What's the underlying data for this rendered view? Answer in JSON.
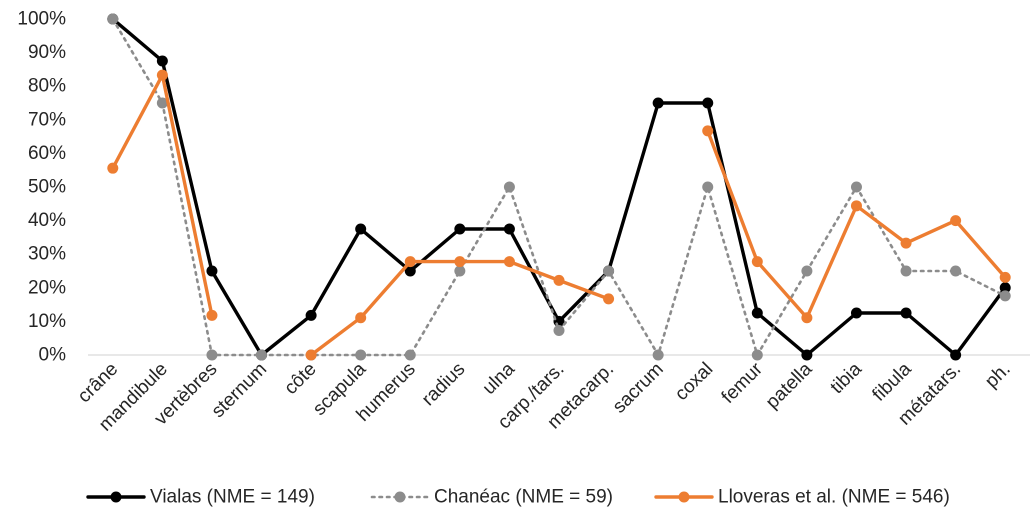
{
  "chart_data": {
    "type": "line",
    "categories": [
      "crâne",
      "mandibule",
      "vertèbres",
      "sternum",
      "côte",
      "scapula",
      "humerus",
      "radius",
      "ulna",
      "carp./tars.",
      "metacarp.",
      "sacrum",
      "coxal",
      "femur",
      "patella",
      "tibia",
      "fibula",
      "métatars.",
      "ph."
    ],
    "ylim": [
      0,
      100
    ],
    "yticks": [
      0,
      10,
      20,
      30,
      40,
      50,
      60,
      70,
      80,
      90,
      100
    ],
    "ytick_labels": [
      "0%",
      "10%",
      "20%",
      "30%",
      "40%",
      "50%",
      "60%",
      "70%",
      "80%",
      "90%",
      "100%"
    ],
    "grid": false,
    "legend_position": "bottom",
    "series": [
      {
        "name": "Vialas (NME = 149)",
        "color": "#000000",
        "style": "solid",
        "values": [
          100,
          87.5,
          25,
          0,
          11.8,
          37.5,
          25,
          37.5,
          37.5,
          10,
          25,
          75,
          75,
          12.5,
          0,
          12.5,
          12.5,
          0,
          20
        ]
      },
      {
        "name": "Chanéac (NME = 59)",
        "color": "#8c8c8c",
        "style": "dotted",
        "values": [
          100,
          75,
          0,
          0,
          0,
          0,
          0,
          25,
          50,
          7.3,
          25,
          0,
          50,
          0,
          25,
          50,
          25,
          25,
          17.6
        ]
      },
      {
        "name": "Lloveras et al. (NME = 546)",
        "color": "#ed7d31",
        "style": "solid",
        "values": [
          55.6,
          83.3,
          11.8,
          null,
          0,
          11.1,
          27.8,
          27.8,
          27.8,
          22.2,
          16.7,
          null,
          66.7,
          27.8,
          11.1,
          44.4,
          33.3,
          40,
          23.1
        ]
      }
    ]
  }
}
